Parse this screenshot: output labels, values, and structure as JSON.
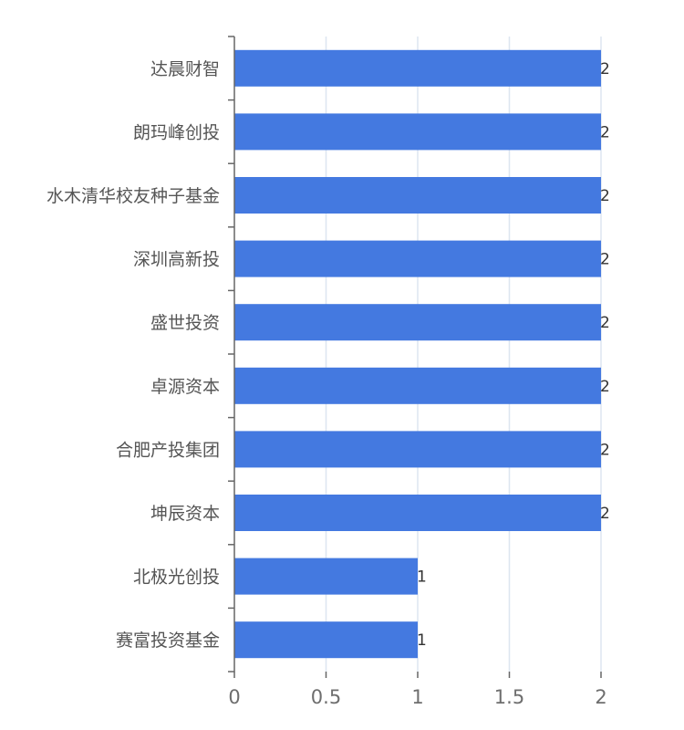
{
  "chart_data": {
    "type": "bar",
    "orientation": "horizontal",
    "categories": [
      "达晨财智",
      "朗玛峰创投",
      "水木清华校友种子基金",
      "深圳高新投",
      "盛世投资",
      "卓源资本",
      "合肥产投集团",
      "坤辰资本",
      "北极光创投",
      "赛富投资基金"
    ],
    "values": [
      2,
      2,
      2,
      2,
      2,
      2,
      2,
      2,
      1,
      1
    ],
    "x_ticks": [
      "0",
      "0.5",
      "1",
      "1.5",
      "2"
    ],
    "xlim": [
      0,
      2
    ],
    "grid": "vertical",
    "show_data_labels": true,
    "title": "",
    "xlabel": "",
    "ylabel": "",
    "colors": {
      "bar": "#4479e0",
      "grid": "#dde6f0",
      "axis": "#666666"
    }
  }
}
